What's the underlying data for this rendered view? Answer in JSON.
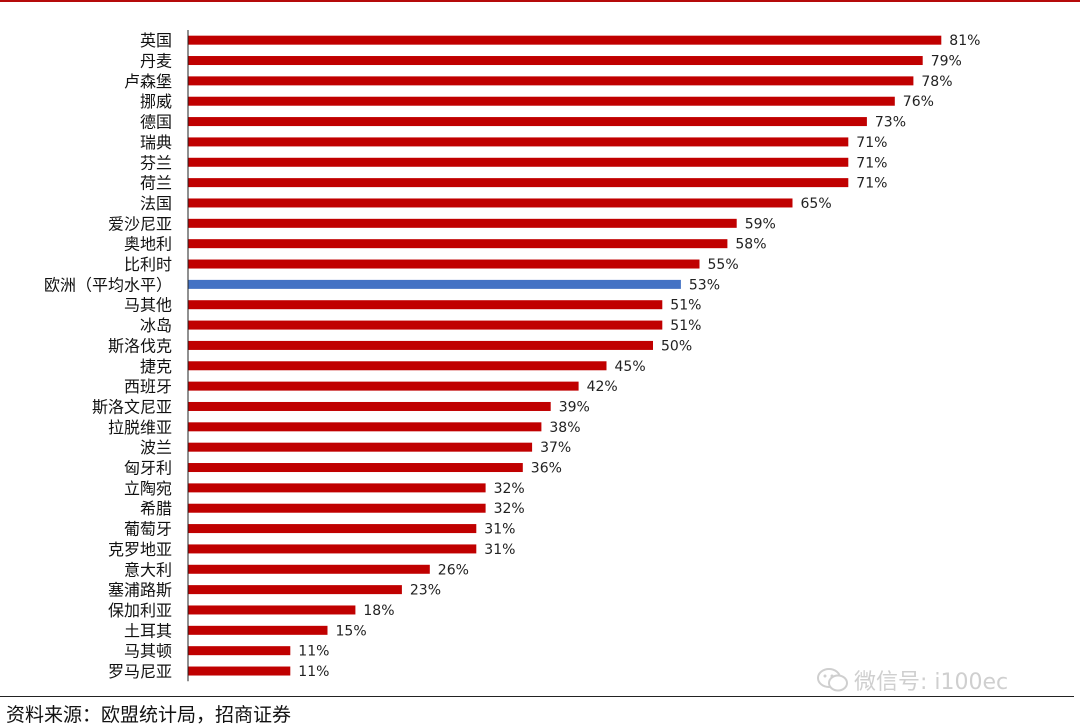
{
  "chart_data": {
    "type": "bar",
    "orientation": "horizontal",
    "title": "",
    "xlabel": "",
    "ylabel": "",
    "xlim": [
      0,
      100
    ],
    "grid": false,
    "legend": "none",
    "value_suffix": "%",
    "categories": [
      "英国",
      "丹麦",
      "卢森堡",
      "挪威",
      "德国",
      "瑞典",
      "芬兰",
      "荷兰",
      "法国",
      "爱沙尼亚",
      "奥地利",
      "比利时",
      "欧洲（平均水平）",
      "马其他",
      "冰岛",
      "斯洛伐克",
      "捷克",
      "西班牙",
      "斯洛文尼亚",
      "拉脱维亚",
      "波兰",
      "匈牙利",
      "立陶宛",
      "希腊",
      "葡萄牙",
      "克罗地亚",
      "意大利",
      "塞浦路斯",
      "保加利亚",
      "土耳其",
      "马其顿",
      "罗马尼亚"
    ],
    "values": [
      81,
      79,
      78,
      76,
      73,
      71,
      71,
      71,
      65,
      59,
      58,
      55,
      53,
      51,
      51,
      50,
      45,
      42,
      39,
      38,
      37,
      36,
      32,
      32,
      31,
      31,
      26,
      23,
      18,
      15,
      11,
      11
    ],
    "highlight_index": 12,
    "colors": {
      "bar": "#c00000",
      "highlight": "#4472c4"
    }
  },
  "source_text": "资料来源：欧盟统计局，招商证券",
  "watermark": {
    "text": "微信号: i100ec",
    "icon": "wechat-icon"
  }
}
